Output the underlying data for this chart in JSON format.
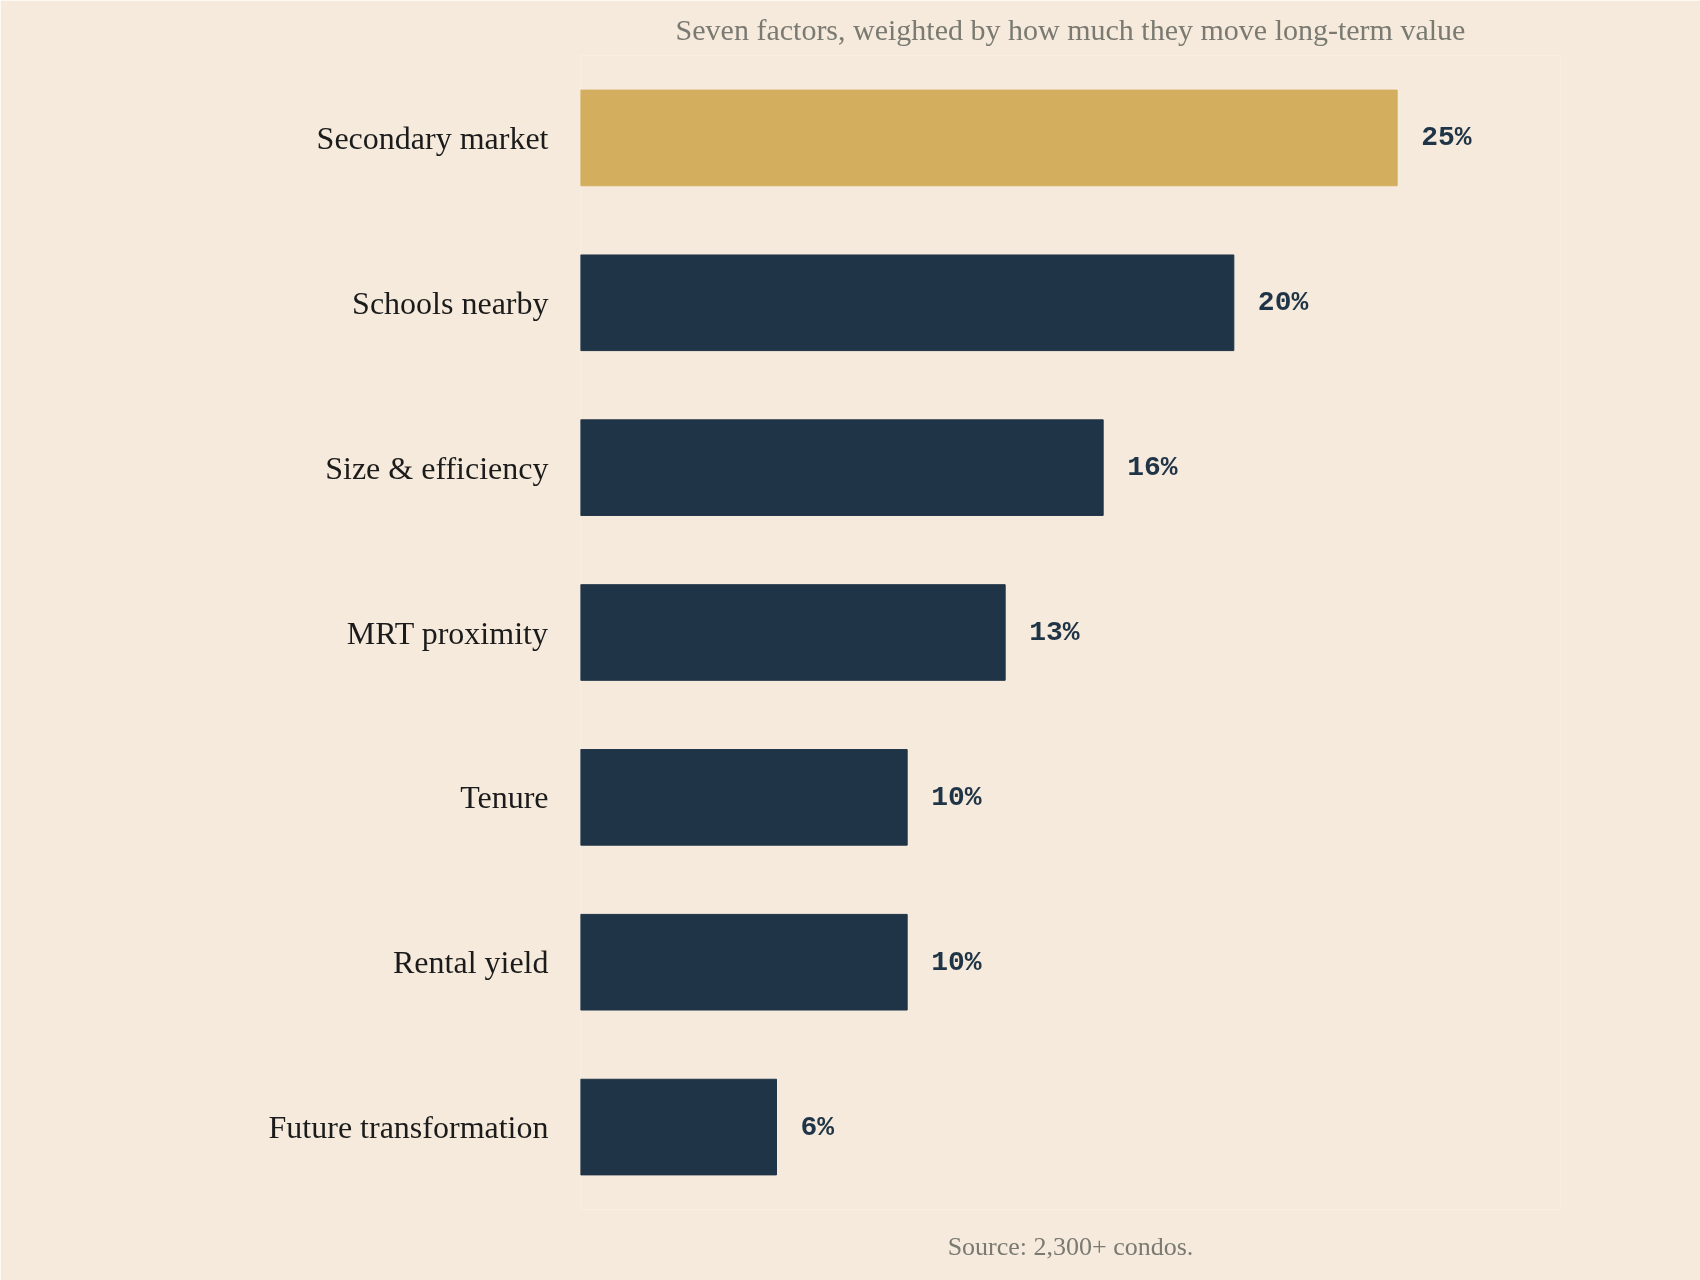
{
  "chart_data": {
    "type": "bar",
    "orientation": "horizontal",
    "subtitle": "Seven factors, weighted by how much they move long-term value",
    "categories": [
      "Secondary market",
      "Schools nearby",
      "Size & efficiency",
      "MRT proximity",
      "Tenure",
      "Rental yield",
      "Future transformation"
    ],
    "values": [
      25,
      20,
      16,
      13,
      10,
      10,
      6
    ],
    "value_labels": [
      "25%",
      "20%",
      "16%",
      "13%",
      "10%",
      "10%",
      "6%"
    ],
    "colors": [
      "#d4ae5f",
      "#1f3447",
      "#1f3447",
      "#1f3447",
      "#1f3447",
      "#1f3447",
      "#1f3447"
    ],
    "annotations": [
      "Source: 2,300+ condos."
    ],
    "grid": false
  }
}
